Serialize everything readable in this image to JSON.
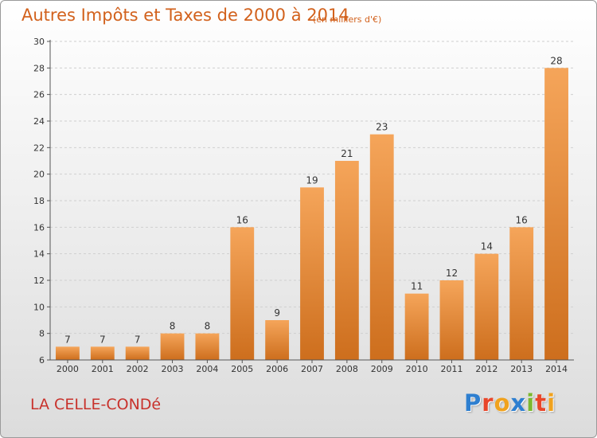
{
  "header": {
    "title": "Autres Impôts et Taxes de 2000 à 2014",
    "subtitle": "(en milliers d'€)"
  },
  "footer": {
    "commune": "LA CELLE-CONDé",
    "logo_letters": [
      {
        "ch": "P",
        "color": "#2e7fd0"
      },
      {
        "ch": "r",
        "color": "#e8462a"
      },
      {
        "ch": "o",
        "color": "#f0a21e"
      },
      {
        "ch": "x",
        "color": "#2e7fd0"
      },
      {
        "ch": "i",
        "color": "#7cb82f"
      },
      {
        "ch": "t",
        "color": "#e8462a"
      },
      {
        "ch": "i",
        "color": "#f0a21e"
      }
    ]
  },
  "chart_data": {
    "type": "bar",
    "categories": [
      "2000",
      "2001",
      "2002",
      "2003",
      "2004",
      "2005",
      "2006",
      "2007",
      "2008",
      "2009",
      "2010",
      "2011",
      "2012",
      "2013",
      "2014"
    ],
    "values": [
      7,
      7,
      7,
      8,
      8,
      16,
      9,
      19,
      21,
      23,
      11,
      12,
      14,
      16,
      28
    ],
    "ylim": [
      6,
      30
    ],
    "yticks": [
      6,
      8,
      10,
      12,
      14,
      16,
      18,
      20,
      22,
      24,
      26,
      28,
      30
    ],
    "grid": true,
    "bar_color_top": "#f5a55a",
    "bar_color_bottom": "#cd6e1d"
  }
}
